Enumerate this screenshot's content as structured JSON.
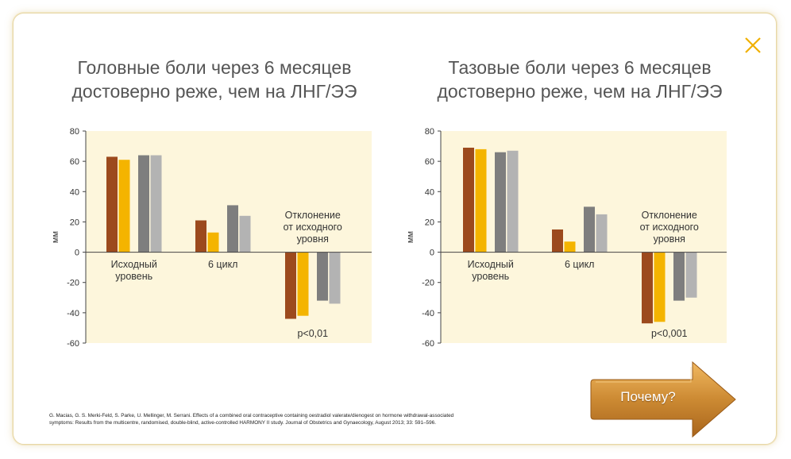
{
  "colors": {
    "brown": "#9c4a1d",
    "yellow": "#f4b400",
    "gray_dark": "#7e7e7e",
    "gray_light": "#b3b3b3",
    "plot_bg": "#fdf6dc",
    "button": "#c98a33",
    "close": "#f0b000"
  },
  "close_icon": "close-icon",
  "button": {
    "label": "Почему?"
  },
  "reference": {
    "line1": "G. Macias, G. S. Merki-Feld, S. Parke, U. Mellinger, M. Serrani. Effects of a combined oral contraceptive containing oestradiol valerate/dienogest on hormone withdrawal-associated",
    "line2": "symptoms: Results from the multicentre, randomised, double-blind, active-controlled HARMONY II study. Journal of Obstetrics and Gynaecology, August 2013; 33: 591–596."
  },
  "chart_data": [
    {
      "type": "bar",
      "title_lines": [
        "Головные боли через 6 месяцев",
        "достоверно реже, чем на ЛНГ/ЭЭ"
      ],
      "ylabel": "мм",
      "ylim": [
        -60,
        80
      ],
      "yticks": [
        80,
        60,
        40,
        20,
        0,
        -20,
        -40,
        -60
      ],
      "grid": false,
      "categories": [
        [
          "Исходный",
          "уровень"
        ],
        [
          "6 цикл"
        ],
        [
          "Отклонение",
          "от исходного",
          "уровня"
        ]
      ],
      "series_colors": [
        "#9c4a1d",
        "#f4b400",
        "#7e7e7e",
        "#b3b3b3"
      ],
      "values": [
        [
          63,
          61,
          64,
          64
        ],
        [
          21,
          13,
          31,
          24
        ],
        [
          -44,
          -42,
          -32,
          -34
        ]
      ],
      "annotation": "p<0,01"
    },
    {
      "type": "bar",
      "title_lines": [
        "Тазовые боли через 6 месяцев",
        "достоверно реже, чем на ЛНГ/ЭЭ"
      ],
      "ylabel": "мм",
      "ylim": [
        -60,
        80
      ],
      "yticks": [
        80,
        60,
        40,
        20,
        0,
        -20,
        -40,
        -60
      ],
      "grid": false,
      "categories": [
        [
          "Исходный",
          "уровень"
        ],
        [
          "6 цикл"
        ],
        [
          "Отклонение",
          "от исходного",
          "уровня"
        ]
      ],
      "series_colors": [
        "#9c4a1d",
        "#f4b400",
        "#7e7e7e",
        "#b3b3b3"
      ],
      "values": [
        [
          69,
          68,
          66,
          67
        ],
        [
          15,
          7,
          30,
          25
        ],
        [
          -47,
          -46,
          -32,
          -30
        ]
      ],
      "annotation": "p<0,001"
    }
  ]
}
